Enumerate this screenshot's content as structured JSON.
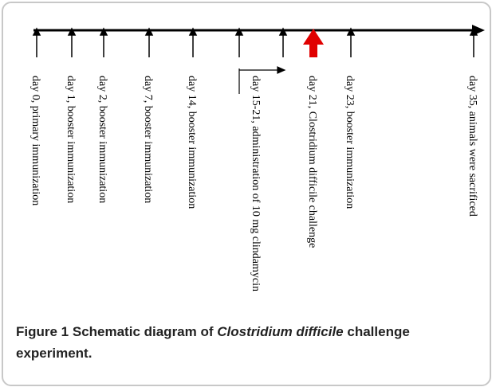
{
  "timeline": {
    "events": [
      {
        "label": "day 0, primary immunization"
      },
      {
        "label": "day 1, booster immunization"
      },
      {
        "label": "day 2, booster immunization"
      },
      {
        "label": "day 7, booster immunization"
      },
      {
        "label": "day 14, booster immunization"
      },
      {
        "label": "day 15-21, administration of 10 mg clindamycin"
      },
      {
        "label": "day 21, Clostridium difficile challenge"
      },
      {
        "label": "day 23, booster immunization"
      },
      {
        "label": "day 35, animals were sacrificed"
      }
    ]
  },
  "caption": {
    "label": "Figure 1",
    "text_before": "Schematic diagram of",
    "species": "Clostridium difficile",
    "text_after": "challenge experiment."
  }
}
